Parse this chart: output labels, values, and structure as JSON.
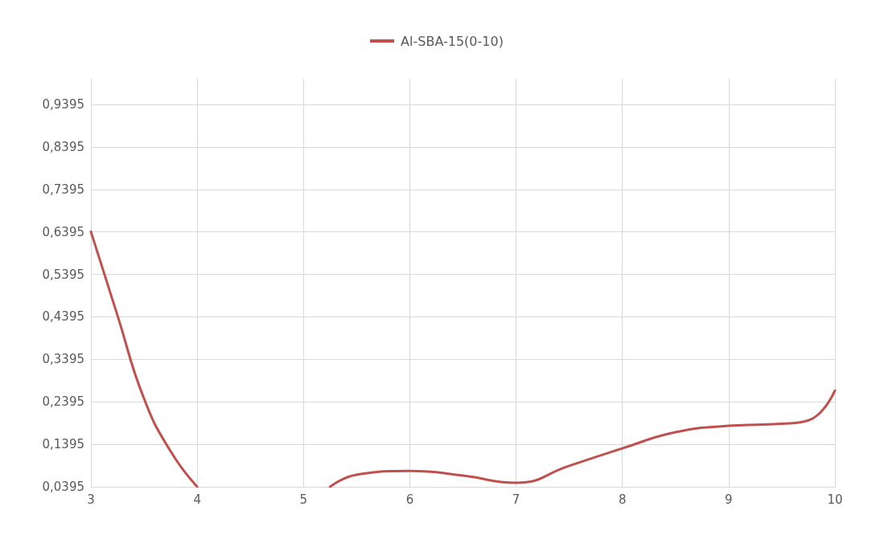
{
  "chart_data": {
    "type": "line",
    "legend": "top",
    "grid": true,
    "marker": "none",
    "line_style": "solid",
    "xlim": [
      3,
      10
    ],
    "xticks": [
      3,
      4,
      5,
      6,
      7,
      8,
      9,
      10
    ],
    "ylim": [
      0.0395,
      1.0
    ],
    "yticks": [
      {
        "value": 0.0395,
        "label": "0,0395"
      },
      {
        "value": 0.1395,
        "label": "0,1395"
      },
      {
        "value": 0.2395,
        "label": "0,2395"
      },
      {
        "value": 0.3395,
        "label": "0,3395"
      },
      {
        "value": 0.4395,
        "label": "0,4395"
      },
      {
        "value": 0.5395,
        "label": "0,5395"
      },
      {
        "value": 0.6395,
        "label": "0,6395"
      },
      {
        "value": 0.7395,
        "label": "0,7395"
      },
      {
        "value": 0.8395,
        "label": "0,8395"
      },
      {
        "value": 0.9395,
        "label": "0,9395"
      }
    ],
    "x": [
      3,
      3.25,
      3.5,
      3.75,
      4,
      4.5,
      5.25,
      5.5,
      6,
      6.5,
      7,
      7.5,
      8,
      8.5,
      9,
      9.5,
      9.75,
      10
    ],
    "series": [
      {
        "name": "Al-SBA-15(0-10)",
        "color": "#c0504d",
        "values": [
          0.64,
          0.443,
          0.247,
          0.123,
          0.0395,
          null,
          0.0395,
          0.068,
          0.077,
          0.066,
          0.049,
          0.089,
          0.13,
          0.168,
          0.183,
          0.188,
          0.196,
          0.266
        ]
      }
    ]
  }
}
